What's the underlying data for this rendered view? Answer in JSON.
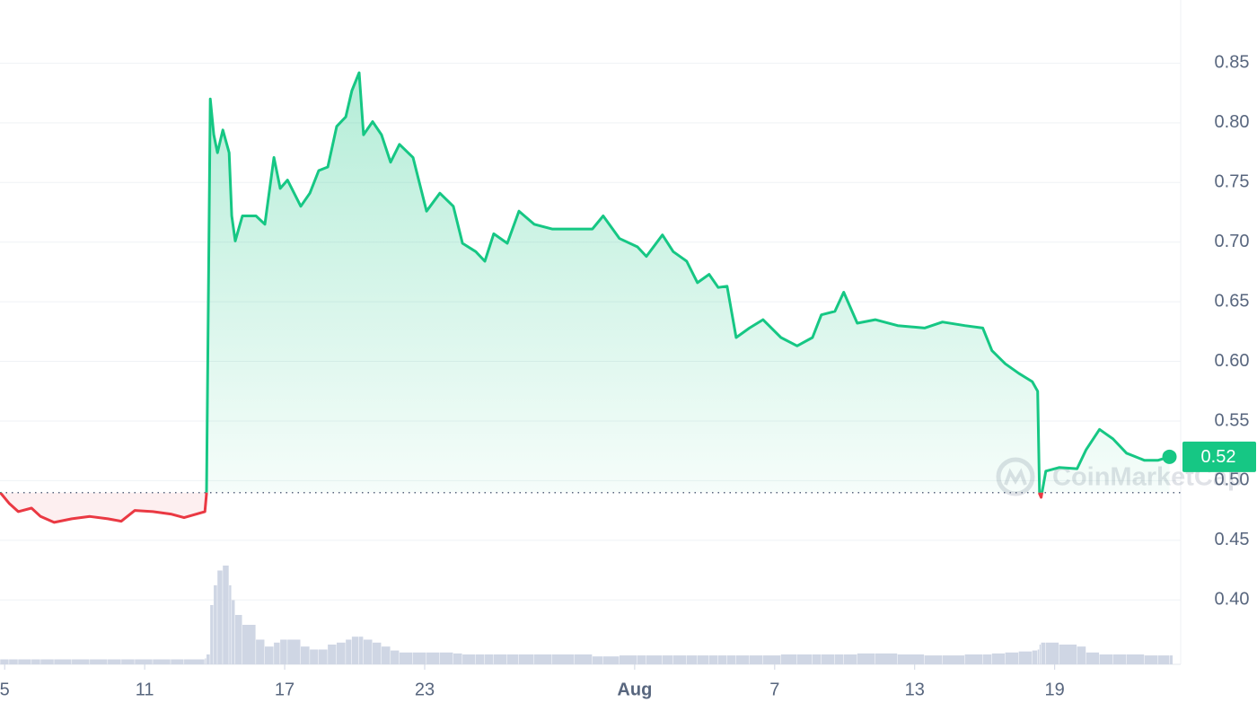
{
  "chart_data": {
    "type": "line",
    "x": [
      4.81,
      5.19,
      5.58,
      6.15,
      6.54,
      7.12,
      7.88,
      8.65,
      9.42,
      10.0,
      10.58,
      11.35,
      12.12,
      12.69,
      13.58,
      13.65,
      13.81,
      13.96,
      14.12,
      14.35,
      14.62,
      14.73,
      14.88,
      15.19,
      15.77,
      16.15,
      16.54,
      16.81,
      17.12,
      17.69,
      18.08,
      18.46,
      18.85,
      19.23,
      19.62,
      19.88,
      20.19,
      20.38,
      20.77,
      21.15,
      21.54,
      21.92,
      22.5,
      23.08,
      23.65,
      24.23,
      24.62,
      25.19,
      25.58,
      25.96,
      26.54,
      27.04,
      27.69,
      28.46,
      29.42,
      30.19,
      30.65,
      31.35,
      32.12,
      32.5,
      33.19,
      33.65,
      34.23,
      34.69,
      35.19,
      35.58,
      35.96,
      36.35,
      36.92,
      37.5,
      38.27,
      38.96,
      39.62,
      40.0,
      40.58,
      40.96,
      41.54,
      42.31,
      43.27,
      44.42,
      45.19,
      46.15,
      46.92,
      47.31,
      47.88,
      48.46,
      49.04,
      49.27,
      49.35,
      49.42,
      49.62,
      50.19,
      50.96,
      51.35,
      51.92,
      52.5,
      53.08,
      53.85,
      54.42,
      54.92
    ],
    "series": [
      {
        "name": "Price",
        "color": "#16c784",
        "below_color": "#ea3943",
        "values": [
          0.49,
          0.481,
          0.474,
          0.477,
          0.47,
          0.465,
          0.468,
          0.47,
          0.468,
          0.466,
          0.475,
          0.474,
          0.472,
          0.469,
          0.474,
          0.489,
          0.82,
          0.79,
          0.775,
          0.794,
          0.775,
          0.722,
          0.701,
          0.722,
          0.722,
          0.715,
          0.771,
          0.745,
          0.752,
          0.73,
          0.741,
          0.76,
          0.763,
          0.797,
          0.805,
          0.827,
          0.842,
          0.79,
          0.801,
          0.79,
          0.767,
          0.782,
          0.771,
          0.726,
          0.741,
          0.73,
          0.699,
          0.692,
          0.684,
          0.707,
          0.699,
          0.726,
          0.715,
          0.711,
          0.711,
          0.711,
          0.722,
          0.703,
          0.696,
          0.688,
          0.706,
          0.692,
          0.684,
          0.666,
          0.673,
          0.662,
          0.663,
          0.62,
          0.628,
          0.635,
          0.62,
          0.613,
          0.62,
          0.639,
          0.642,
          0.658,
          0.632,
          0.635,
          0.63,
          0.628,
          0.633,
          0.63,
          0.628,
          0.609,
          0.598,
          0.59,
          0.583,
          0.575,
          0.489,
          0.486,
          0.508,
          0.511,
          0.51,
          0.526,
          0.543,
          0.535,
          0.523,
          0.517,
          0.517,
          0.52
        ]
      },
      {
        "name": "Volume",
        "color": "#cfd6e4",
        "axis": "volume",
        "values": [
          5,
          5,
          5,
          5,
          5,
          5,
          5,
          5,
          5,
          5,
          5,
          5,
          5,
          5,
          6,
          10,
          60,
          80,
          95,
          100,
          80,
          65,
          50,
          40,
          25,
          18,
          22,
          25,
          25,
          18,
          15,
          15,
          20,
          22,
          25,
          28,
          28,
          25,
          22,
          18,
          14,
          12,
          12,
          12,
          12,
          11,
          10,
          10,
          10,
          10,
          10,
          10,
          10,
          10,
          10,
          8,
          8,
          9,
          9,
          9,
          9,
          9,
          9,
          9,
          9,
          9,
          9,
          9,
          9,
          9,
          10,
          10,
          10,
          10,
          10,
          10,
          11,
          11,
          10,
          9,
          9,
          10,
          10,
          11,
          12,
          13,
          14,
          15,
          20,
          22,
          22,
          20,
          18,
          12,
          10,
          10,
          10,
          9,
          9,
          9
        ]
      }
    ],
    "volume_lim": [
      0,
      100
    ],
    "xlim": [
      4.8,
      55.4
    ],
    "xticks": [
      5,
      11,
      17,
      23,
      {
        "value": 32,
        "label": "Aug"
      },
      {
        "value": 38,
        "label": "7"
      },
      {
        "value": 44,
        "label": "13"
      },
      {
        "value": 50,
        "label": "19"
      }
    ],
    "ylim": [
      0.346,
      0.903
    ],
    "yticks": [
      {
        "value": 0.4,
        "label": "0.40"
      },
      0.45,
      {
        "value": 0.5,
        "label": "0.50"
      },
      0.55,
      {
        "value": 0.6,
        "label": "0.60"
      },
      0.65,
      {
        "value": 0.7,
        "label": "0.70"
      },
      0.75,
      {
        "value": 0.8,
        "label": "0.80"
      },
      0.85
    ],
    "baseline": 0.49,
    "current_price": 0.52,
    "watermark": "CoinMarketCap",
    "grid": true
  }
}
